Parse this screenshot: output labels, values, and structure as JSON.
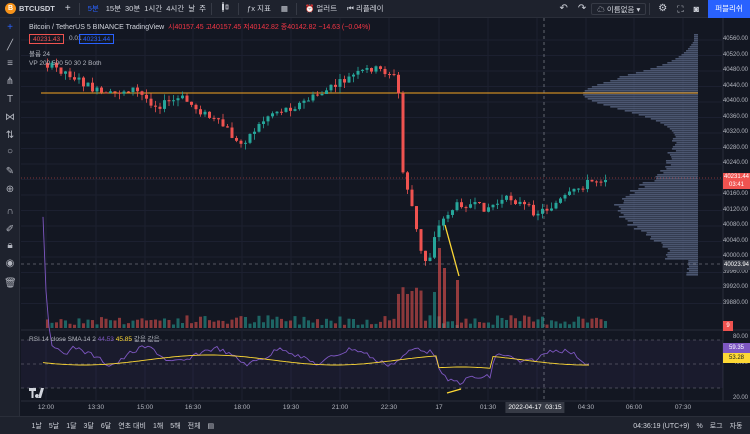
{
  "topbar": {
    "symbol_badge": "B",
    "symbol": "BTCUSDT",
    "add_symbol_icon": "+",
    "intervals": [
      "5분",
      "15분",
      "30분",
      "1시간",
      "4시간",
      "날",
      "주"
    ],
    "chart_type_icon": "candles-icon",
    "indicators_label": "지표",
    "layout_icon": "layout-icon",
    "alert_label": "얼러트",
    "replay_label": "리플레이",
    "undo_icon": "undo-icon",
    "redo_icon": "redo-icon",
    "layout_name": "이름없음",
    "publish_label": "퍼블리쉬",
    "settings_icon": "gear-icon",
    "fullscreen_icon": "fullscreen-icon",
    "camera_icon": "camera-icon"
  },
  "legend": {
    "title": "Bitcoin / TetherUS  5  BINANCE  TradingView",
    "ohlc": "시40157.45  고40157.45  저40142.82  종40142.82  −14.63 (−0.04%)",
    "sell_price": "40231.43",
    "spread": "0.01",
    "buy_price": "40231.44",
    "volume_label": "볼륨  24",
    "vp_label": "VP  200  500  50  30  2  Both"
  },
  "rsi": {
    "label_prefix": "RSI  14  close  SMA  14  2",
    "smoothing_value": "44.53",
    "value": "45.85",
    "suffix": "값음  값음"
  },
  "price_axis": {
    "labels": [
      "40560.00",
      "40520.00",
      "40480.00",
      "40440.00",
      "40400.00",
      "40360.00",
      "40320.00",
      "40280.00",
      "40240.00",
      "40200.00",
      "40160.00",
      "40120.00",
      "40080.00",
      "40040.00",
      "40000.00",
      "39960.00",
      "39920.00",
      "39880.00"
    ],
    "current_price": "40231.44",
    "countdown": "03:41",
    "crosshair_price": "40023.94",
    "volume_tag": "9"
  },
  "rsi_axis": {
    "labels": [
      "80.00",
      "40.00",
      "20.00"
    ],
    "rsi_tag": "59.35",
    "sma_tag": "53.28"
  },
  "time_axis": {
    "labels": [
      "12:00",
      "13:30",
      "15:00",
      "16:30",
      "18:00",
      "19:30",
      "21:00",
      "22:30",
      "17",
      "01:30",
      "04:30",
      "06:00",
      "07:30"
    ],
    "crosshair_date": "2022-04-17",
    "crosshair_time": "03:15"
  },
  "bottombar": {
    "ranges": [
      "1날",
      "5날",
      "1달",
      "3달",
      "6달",
      "연초 대비",
      "1해",
      "5해",
      "전체"
    ],
    "date_range_icon": "calendar-icon",
    "time": "04:36:19 (UTC+9)",
    "percent": "%",
    "log": "로그",
    "auto": "자동"
  },
  "colors": {
    "up": "#26a69a",
    "down": "#ef5350",
    "poc": "#f5a623",
    "rsi": "#7e57c2",
    "rsi_sma": "#fdd835",
    "accent": "#2962ff"
  }
}
